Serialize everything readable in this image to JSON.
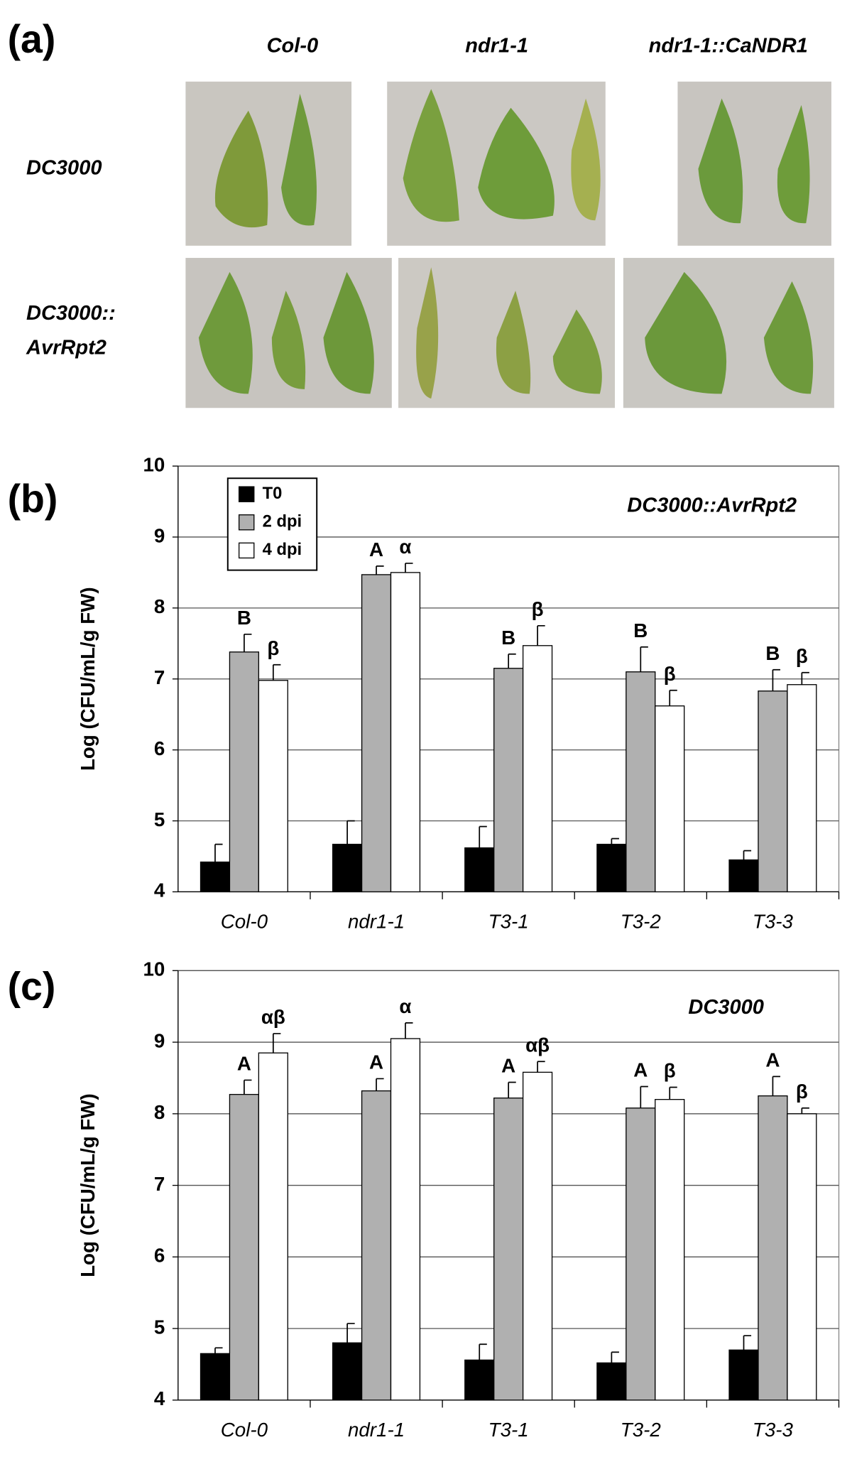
{
  "panel_a": {
    "label": "(a)",
    "columns": [
      "Col-0",
      "ndr1-1",
      "ndr1-1::CaNDR1"
    ],
    "rows": [
      [
        "DC3000"
      ],
      [
        "DC3000::",
        "AvrRpt2"
      ]
    ]
  },
  "chart_data": [
    {
      "type": "bar",
      "panel_label": "(b)",
      "title": "DC3000::AvrRpt2",
      "y_label": "Log (CFU/mL/g FW)",
      "categories": [
        "Col-0",
        "ndr1-1",
        "T3-1",
        "T3-2",
        "T3-3"
      ],
      "ylim": [
        4,
        10
      ],
      "yticks": [
        4,
        5,
        6,
        7,
        8,
        9,
        10
      ],
      "grid": true,
      "legend": true,
      "series": [
        {
          "name": "T0",
          "color": "#000000",
          "values": [
            4.42,
            4.67,
            4.62,
            4.67,
            4.45
          ],
          "errors": [
            0.25,
            0.33,
            0.3,
            0.08,
            0.13
          ]
        },
        {
          "name": "2 dpi",
          "color": "#b0b0b0",
          "values": [
            7.38,
            8.47,
            7.15,
            7.1,
            6.83
          ],
          "errors": [
            0.25,
            0.12,
            0.2,
            0.35,
            0.3
          ],
          "letters": [
            "B",
            "A",
            "B",
            "B",
            "B"
          ]
        },
        {
          "name": "4 dpi",
          "color": "#ffffff",
          "values": [
            6.98,
            8.5,
            7.47,
            6.62,
            6.92
          ],
          "errors": [
            0.22,
            0.13,
            0.28,
            0.22,
            0.17
          ],
          "letters": [
            "β",
            "α",
            "β",
            "β",
            "β"
          ]
        }
      ]
    },
    {
      "type": "bar",
      "panel_label": "(c)",
      "title": "DC3000",
      "y_label": "Log (CFU/mL/g FW)",
      "categories": [
        "Col-0",
        "ndr1-1",
        "T3-1",
        "T3-2",
        "T3-3"
      ],
      "ylim": [
        4,
        10
      ],
      "yticks": [
        4,
        5,
        6,
        7,
        8,
        9,
        10
      ],
      "grid": true,
      "legend": false,
      "series": [
        {
          "color": "#000000",
          "values": [
            4.65,
            4.8,
            4.56,
            4.52,
            4.7
          ],
          "errors": [
            0.08,
            0.27,
            0.22,
            0.15,
            0.2
          ]
        },
        {
          "color": "#b0b0b0",
          "values": [
            8.27,
            8.32,
            8.22,
            8.08,
            8.25
          ],
          "errors": [
            0.2,
            0.17,
            0.22,
            0.3,
            0.27
          ],
          "letters": [
            "A",
            "A",
            "A",
            "A",
            "A"
          ]
        },
        {
          "color": "#ffffff",
          "values": [
            8.85,
            9.05,
            8.58,
            8.2,
            8.0
          ],
          "errors": [
            0.27,
            0.22,
            0.15,
            0.17,
            0.08
          ],
          "letters": [
            "αβ",
            "α",
            "αβ",
            "β",
            "β"
          ]
        }
      ]
    }
  ]
}
